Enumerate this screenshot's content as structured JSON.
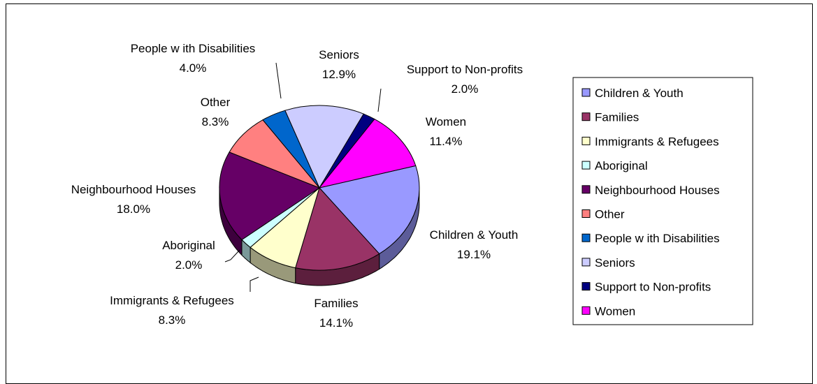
{
  "chart_data": {
    "type": "pie",
    "title": "",
    "legend_position": "right",
    "slices": [
      {
        "name": "Children & Youth",
        "value": 19.1,
        "label": "19.1%",
        "color": "#9999FF"
      },
      {
        "name": "Families",
        "value": 14.1,
        "label": "14.1%",
        "color": "#993366"
      },
      {
        "name": "Immigrants & Refugees",
        "value": 8.3,
        "label": "8.3%",
        "color": "#FFFFCC"
      },
      {
        "name": "Aboriginal",
        "value": 2.0,
        "label": "2.0%",
        "color": "#CCFFFF"
      },
      {
        "name": "Neighbourhood Houses",
        "value": 18.0,
        "label": "18.0%",
        "color": "#660066"
      },
      {
        "name": "Other",
        "value": 8.3,
        "label": "8.3%",
        "color": "#FF8080"
      },
      {
        "name": "People w ith Disabilities",
        "value": 4.0,
        "label": "4.0%",
        "color": "#0066CC"
      },
      {
        "name": "Seniors",
        "value": 12.9,
        "label": "12.9%",
        "color": "#CCCCFF"
      },
      {
        "name": "Support to Non-profits",
        "value": 2.0,
        "label": "2.0%",
        "color": "#000080"
      },
      {
        "name": "Women",
        "value": 11.4,
        "label": "11.4%",
        "color": "#FF00FF"
      }
    ]
  }
}
